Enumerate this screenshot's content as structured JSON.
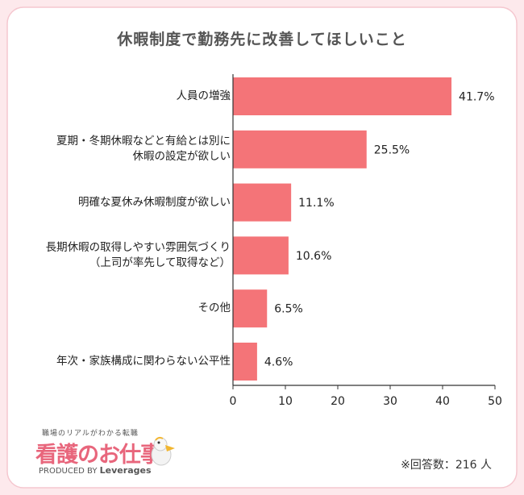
{
  "title": "休暇制度で勤務先に改善してほしいこと",
  "colors": {
    "bar": "#f47478",
    "background": "#fde9ec",
    "panel": "#ffffff",
    "logo": "#e8667c"
  },
  "chart_data": {
    "type": "bar",
    "orientation": "horizontal",
    "title": "休暇制度で勤務先に改善してほしいこと",
    "categories": [
      [
        "人員の増強"
      ],
      [
        "夏期・冬期休暇などと有給とは別に",
        "休暇の設定が欲しい"
      ],
      [
        "明確な夏休み休暇制度が欲しい"
      ],
      [
        "長期休暇の取得しやすい雰囲気づくり",
        "（上司が率先して取得など）"
      ],
      [
        "その他"
      ],
      [
        "年次・家族構成に関わらない公平性"
      ]
    ],
    "values": [
      41.7,
      25.5,
      11.1,
      10.6,
      6.5,
      4.6
    ],
    "value_labels": [
      "41.7%",
      "25.5%",
      "11.1%",
      "10.6%",
      "6.5%",
      "4.6%"
    ],
    "xlim": [
      0,
      50
    ],
    "xticks": [
      "0",
      "10",
      "20",
      "30",
      "40",
      "50"
    ],
    "grid": false
  },
  "footnote": "※回答数：216 人",
  "logo": {
    "tagline": "職場のリアルがわかる転職",
    "name": "看護のお仕事",
    "produced_by": "PRODUCED BY",
    "brand": "Leverages"
  }
}
